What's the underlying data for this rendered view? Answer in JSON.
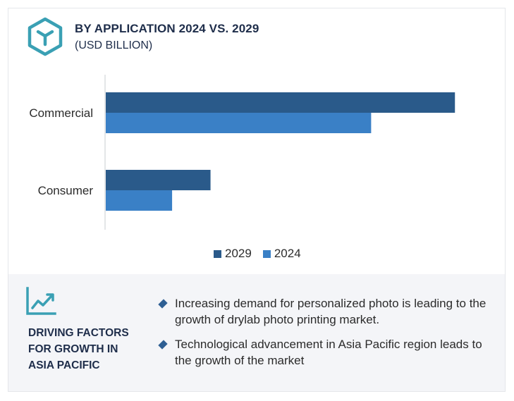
{
  "header": {
    "title": "BY APPLICATION 2024 VS. 2029",
    "subtitle": "(USD BILLION)",
    "logo_icon": "cube-icon"
  },
  "colors": {
    "series_2029": "#2a5a8a",
    "series_2024": "#3a80c6",
    "accent": "#3aa0b4",
    "heading": "#1e2d4a"
  },
  "chart_data": {
    "type": "bar",
    "orientation": "horizontal",
    "title": "BY APPLICATION 2024 VS. 2029",
    "subtitle": "(USD BILLION)",
    "categories": [
      "Commercial",
      "Consumer"
    ],
    "series": [
      {
        "name": "2029",
        "values": [
          10.0,
          3.0
        ]
      },
      {
        "name": "2024",
        "values": [
          7.6,
          1.9
        ]
      }
    ],
    "xlim": [
      0,
      10.5
    ],
    "grid": false,
    "legend": "bottom"
  },
  "driving_factors": {
    "icon": "growth-chart-icon",
    "title": "DRIVING FACTORS\nFOR GROWTH IN\nASIA PACIFIC",
    "bullets": [
      "Increasing demand for personalized photo is leading to the growth of drylab photo printing market.",
      "Technological advancement in Asia Pacific region leads to the growth of the market"
    ]
  }
}
